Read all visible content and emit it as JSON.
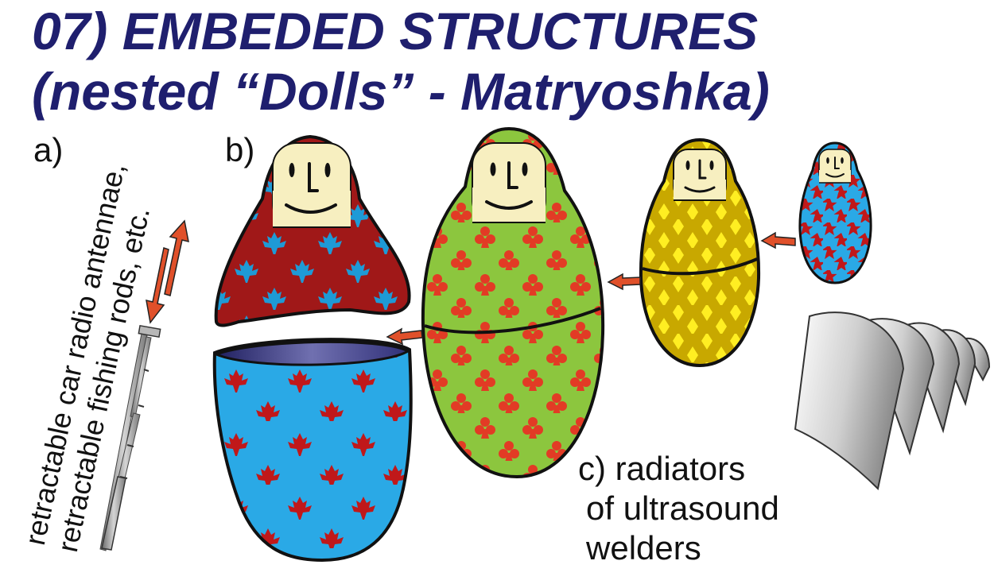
{
  "title": {
    "line1": "07) EMBEDED STRUCTURES",
    "line2": "(nested “Dolls” - Matryoshka)"
  },
  "section_a": {
    "label": "a)",
    "caption_line1": "retractable car radio antennae,",
    "caption_line2": "retractable fishing rods, etc."
  },
  "section_b": {
    "label": "b)"
  },
  "section_c": {
    "label": "c)",
    "caption_line1": "radiators",
    "caption_line2": "of ultrasound",
    "caption_line3": "welders"
  },
  "colors": {
    "title": "#1f1f6e",
    "doll1_top": "#a01818",
    "doll1_pattern": "#1e9ad6",
    "doll1_bottom": "#2aa9e6",
    "doll1_bottom_pattern": "#c0181a",
    "doll2_body": "#8cc63e",
    "doll2_pattern": "#e23b25",
    "doll3_body": "#c8a800",
    "doll3_pattern": "#ffee22",
    "doll4_body": "#2aa9e6",
    "doll4_pattern": "#c0181a",
    "face": "#f7efc0",
    "arrow": "#e0502a",
    "outline": "#111111"
  },
  "icons": {
    "doll_pattern_1": "maple-leaf-icon",
    "doll_pattern_2": "club-icon",
    "doll_pattern_3": "diamond-icon",
    "doll_pattern_4": "star-icon"
  }
}
